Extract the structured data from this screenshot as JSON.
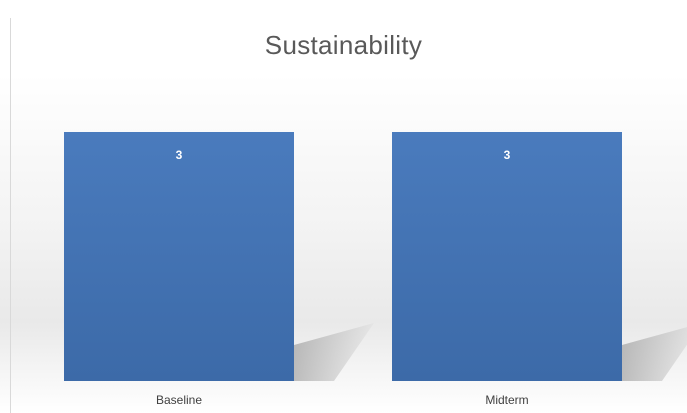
{
  "chart_data": {
    "type": "bar",
    "title": "Sustainability",
    "categories": [
      "Baseline",
      "Midterm"
    ],
    "values": [
      3,
      3
    ],
    "data_labels": [
      "3",
      "3"
    ],
    "xlabel": "",
    "ylabel": "",
    "ylim": [
      0,
      3
    ],
    "grid": false,
    "legend": "none",
    "colors": {
      "bar": "#4a7bbd",
      "bar_dark": "#3c6aa8",
      "shadow": "#8c8c8c"
    }
  }
}
